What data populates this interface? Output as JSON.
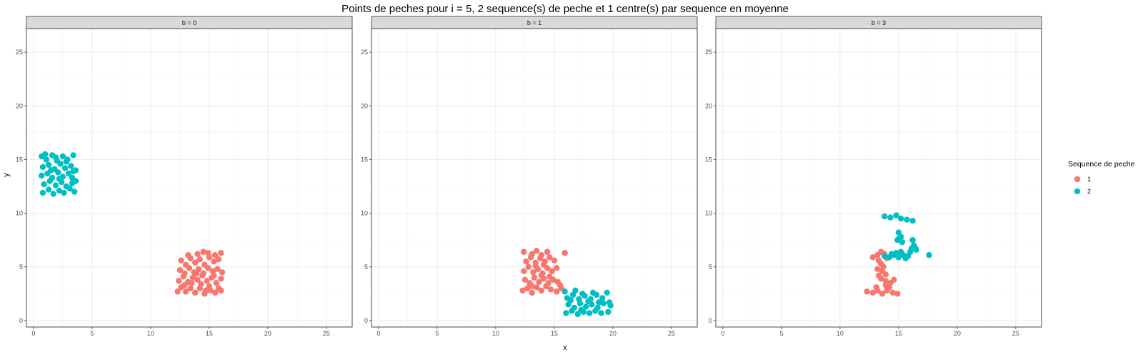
{
  "chart_data": {
    "type": "scatter",
    "title": "Points de peches pour i = 5, 2 sequence(s) de peche et 1 centre(s) par sequence en moyenne",
    "xlabel": "x",
    "ylabel": "y",
    "xlim": [
      -0.6,
      27.2
    ],
    "ylim": [
      -0.6,
      27.2
    ],
    "x_ticks": [
      0,
      5,
      10,
      15,
      20,
      25
    ],
    "y_ticks": [
      0,
      5,
      10,
      15,
      20,
      25
    ],
    "grid": true,
    "legend": {
      "title": "Sequence de peche",
      "position": "right",
      "entries": [
        {
          "label": "1",
          "color": "#F8766D"
        },
        {
          "label": "2",
          "color": "#00BFC4"
        }
      ]
    },
    "facets": [
      {
        "label": "b = 0",
        "series": [
          {
            "name": "1",
            "color": "#F8766D",
            "points": [
              [
                12.3,
                2.7
              ],
              [
                12.6,
                3.1
              ],
              [
                13.0,
                2.7
              ],
              [
                13.4,
                3.0
              ],
              [
                13.8,
                2.6
              ],
              [
                14.2,
                3.0
              ],
              [
                14.6,
                2.5
              ],
              [
                15.1,
                2.8
              ],
              [
                15.5,
                2.6
              ],
              [
                16.0,
                2.8
              ],
              [
                12.4,
                3.7
              ],
              [
                12.8,
                4.1
              ],
              [
                13.2,
                3.6
              ],
              [
                13.6,
                4.0
              ],
              [
                14.0,
                3.8
              ],
              [
                14.4,
                4.2
              ],
              [
                14.8,
                3.7
              ],
              [
                15.2,
                4.0
              ],
              [
                15.6,
                3.5
              ],
              [
                16.0,
                3.9
              ],
              [
                12.5,
                4.7
              ],
              [
                12.9,
                4.4
              ],
              [
                13.3,
                4.9
              ],
              [
                13.7,
                4.5
              ],
              [
                14.1,
                4.8
              ],
              [
                14.5,
                4.4
              ],
              [
                14.9,
                4.9
              ],
              [
                15.3,
                4.6
              ],
              [
                15.7,
                4.8
              ],
              [
                16.1,
                4.5
              ],
              [
                12.6,
                5.6
              ],
              [
                13.0,
                5.2
              ],
              [
                13.4,
                5.8
              ],
              [
                13.8,
                5.4
              ],
              [
                14.2,
                5.7
              ],
              [
                14.6,
                5.2
              ],
              [
                15.0,
                5.9
              ],
              [
                15.4,
                5.5
              ],
              [
                15.8,
                5.7
              ],
              [
                13.2,
                6.1
              ],
              [
                14.0,
                6.2
              ],
              [
                14.5,
                6.4
              ],
              [
                14.9,
                6.3
              ],
              [
                15.5,
                6.1
              ],
              [
                16.0,
                6.3
              ],
              [
                12.9,
                3.3
              ],
              [
                13.5,
                3.5
              ],
              [
                14.3,
                3.4
              ],
              [
                15.0,
                3.2
              ],
              [
                15.8,
                3.0
              ],
              [
                14.7,
                2.8
              ],
              [
                13.9,
                4.4
              ],
              [
                15.4,
                4.2
              ]
            ]
          },
          {
            "name": "2",
            "color": "#00BFC4",
            "points": [
              [
                0.8,
                11.9
              ],
              [
                1.3,
                12.2
              ],
              [
                1.7,
                11.8
              ],
              [
                2.2,
                12.1
              ],
              [
                2.6,
                11.9
              ],
              [
                3.1,
                12.3
              ],
              [
                3.5,
                12.0
              ],
              [
                0.9,
                12.7
              ],
              [
                1.4,
                13.0
              ],
              [
                1.9,
                12.6
              ],
              [
                2.4,
                12.9
              ],
              [
                2.8,
                12.5
              ],
              [
                3.3,
                12.8
              ],
              [
                3.6,
                13.0
              ],
              [
                0.7,
                13.5
              ],
              [
                1.2,
                13.7
              ],
              [
                1.6,
                13.3
              ],
              [
                2.1,
                13.8
              ],
              [
                2.5,
                13.4
              ],
              [
                3.0,
                13.7
              ],
              [
                3.4,
                13.9
              ],
              [
                0.8,
                14.3
              ],
              [
                1.3,
                14.5
              ],
              [
                1.8,
                14.1
              ],
              [
                2.3,
                14.6
              ],
              [
                2.7,
                14.2
              ],
              [
                3.2,
                14.4
              ],
              [
                3.6,
                14.0
              ],
              [
                0.7,
                15.3
              ],
              [
                1.1,
                15.0
              ],
              [
                1.6,
                15.4
              ],
              [
                2.0,
                14.9
              ],
              [
                2.5,
                15.3
              ],
              [
                2.9,
                15.0
              ],
              [
                3.4,
                15.4
              ],
              [
                1.0,
                15.5
              ],
              [
                1.9,
                15.2
              ],
              [
                2.8,
                14.8
              ],
              [
                1.5,
                14.0
              ],
              [
                2.2,
                13.2
              ],
              [
                3.3,
                13.3
              ]
            ]
          }
        ]
      },
      {
        "label": "b = 1",
        "series": [
          {
            "name": "1",
            "color": "#F8766D",
            "points": [
              [
                12.3,
                2.8
              ],
              [
                12.7,
                3.0
              ],
              [
                13.1,
                2.6
              ],
              [
                13.5,
                3.1
              ],
              [
                13.9,
                2.8
              ],
              [
                14.3,
                3.2
              ],
              [
                14.7,
                2.9
              ],
              [
                15.2,
                2.7
              ],
              [
                15.6,
                3.0
              ],
              [
                12.5,
                3.8
              ],
              [
                12.9,
                3.5
              ],
              [
                13.3,
                4.0
              ],
              [
                13.7,
                3.6
              ],
              [
                14.1,
                3.9
              ],
              [
                14.5,
                3.5
              ],
              [
                14.9,
                3.8
              ],
              [
                15.3,
                3.6
              ],
              [
                12.4,
                4.6
              ],
              [
                12.8,
                5.0
              ],
              [
                13.2,
                4.5
              ],
              [
                13.6,
                4.8
              ],
              [
                14.0,
                4.4
              ],
              [
                14.4,
                4.9
              ],
              [
                14.8,
                4.6
              ],
              [
                15.2,
                4.9
              ],
              [
                12.6,
                5.5
              ],
              [
                13.0,
                5.9
              ],
              [
                13.4,
                5.4
              ],
              [
                13.8,
                5.8
              ],
              [
                14.2,
                5.5
              ],
              [
                14.6,
                5.9
              ],
              [
                15.0,
                5.6
              ],
              [
                12.4,
                6.4
              ],
              [
                13.1,
                6.2
              ],
              [
                13.5,
                6.5
              ],
              [
                13.9,
                6.1
              ],
              [
                14.4,
                6.4
              ],
              [
                15.9,
                6.3
              ],
              [
                13.1,
                3.2
              ],
              [
                13.9,
                4.2
              ],
              [
                14.6,
                4.1
              ],
              [
                15.5,
                3.3
              ],
              [
                13.4,
                5.1
              ],
              [
                14.1,
                5.2
              ]
            ]
          },
          {
            "name": "2",
            "color": "#00BFC4",
            "points": [
              [
                16.0,
                0.7
              ],
              [
                16.5,
                0.9
              ],
              [
                17.0,
                0.6
              ],
              [
                17.5,
                0.8
              ],
              [
                18.0,
                0.7
              ],
              [
                18.5,
                0.9
              ],
              [
                19.0,
                0.7
              ],
              [
                19.6,
                0.8
              ],
              [
                16.2,
                1.5
              ],
              [
                16.7,
                1.2
              ],
              [
                17.2,
                1.6
              ],
              [
                17.7,
                1.3
              ],
              [
                18.2,
                1.5
              ],
              [
                18.7,
                1.2
              ],
              [
                19.2,
                1.6
              ],
              [
                19.8,
                1.4
              ],
              [
                16.1,
                2.1
              ],
              [
                16.6,
                2.4
              ],
              [
                17.1,
                2.0
              ],
              [
                17.6,
                2.3
              ],
              [
                18.1,
                2.0
              ],
              [
                18.6,
                2.4
              ],
              [
                19.1,
                2.1
              ],
              [
                19.5,
                2.6
              ],
              [
                15.9,
                2.7
              ],
              [
                16.8,
                2.8
              ],
              [
                17.4,
                2.5
              ],
              [
                18.3,
                2.6
              ],
              [
                19.7,
                1.7
              ],
              [
                16.4,
                1.9
              ],
              [
                17.3,
                1.0
              ],
              [
                17.9,
                1.8
              ],
              [
                18.8,
                1.7
              ]
            ]
          }
        ]
      },
      {
        "label": "b = 3",
        "series": [
          {
            "name": "1",
            "color": "#F8766D",
            "points": [
              [
                12.3,
                2.7
              ],
              [
                12.8,
                2.6
              ],
              [
                13.2,
                2.8
              ],
              [
                13.6,
                2.5
              ],
              [
                14.0,
                2.8
              ],
              [
                14.5,
                2.6
              ],
              [
                14.9,
                2.5
              ],
              [
                13.1,
                3.1
              ],
              [
                13.9,
                3.3
              ],
              [
                14.3,
                3.5
              ],
              [
                14.6,
                3.8
              ],
              [
                14.2,
                3.1
              ],
              [
                13.3,
                4.2
              ],
              [
                13.6,
                4.6
              ],
              [
                13.9,
                4.3
              ],
              [
                13.2,
                4.8
              ],
              [
                13.7,
                5.0
              ],
              [
                13.5,
                5.3
              ],
              [
                12.8,
                5.9
              ],
              [
                13.2,
                6.1
              ],
              [
                13.5,
                6.4
              ],
              [
                13.8,
                6.2
              ],
              [
                13.3,
                5.6
              ],
              [
                14.0,
                5.8
              ],
              [
                13.9,
                3.7
              ],
              [
                13.5,
                3.9
              ]
            ]
          },
          {
            "name": "2",
            "color": "#00BFC4",
            "points": [
              [
                13.8,
                9.7
              ],
              [
                14.3,
                9.6
              ],
              [
                14.8,
                9.8
              ],
              [
                15.2,
                9.5
              ],
              [
                15.7,
                9.4
              ],
              [
                16.2,
                9.3
              ],
              [
                15.0,
                8.2
              ],
              [
                15.2,
                7.8
              ],
              [
                15.0,
                7.6
              ],
              [
                15.3,
                7.3
              ],
              [
                14.9,
                7.5
              ],
              [
                16.2,
                7.5
              ],
              [
                16.3,
                7.0
              ],
              [
                16.1,
                6.7
              ],
              [
                16.5,
                6.6
              ],
              [
                13.8,
                6.0
              ],
              [
                14.2,
                5.9
              ],
              [
                14.6,
                6.1
              ],
              [
                15.0,
                5.9
              ],
              [
                15.4,
                6.1
              ],
              [
                15.8,
                6.0
              ],
              [
                14.8,
                6.3
              ],
              [
                15.2,
                6.4
              ],
              [
                16.0,
                6.4
              ],
              [
                16.4,
                6.8
              ],
              [
                17.6,
                6.1
              ],
              [
                14.4,
                6.2
              ],
              [
                15.6,
                5.8
              ]
            ]
          }
        ]
      }
    ]
  }
}
